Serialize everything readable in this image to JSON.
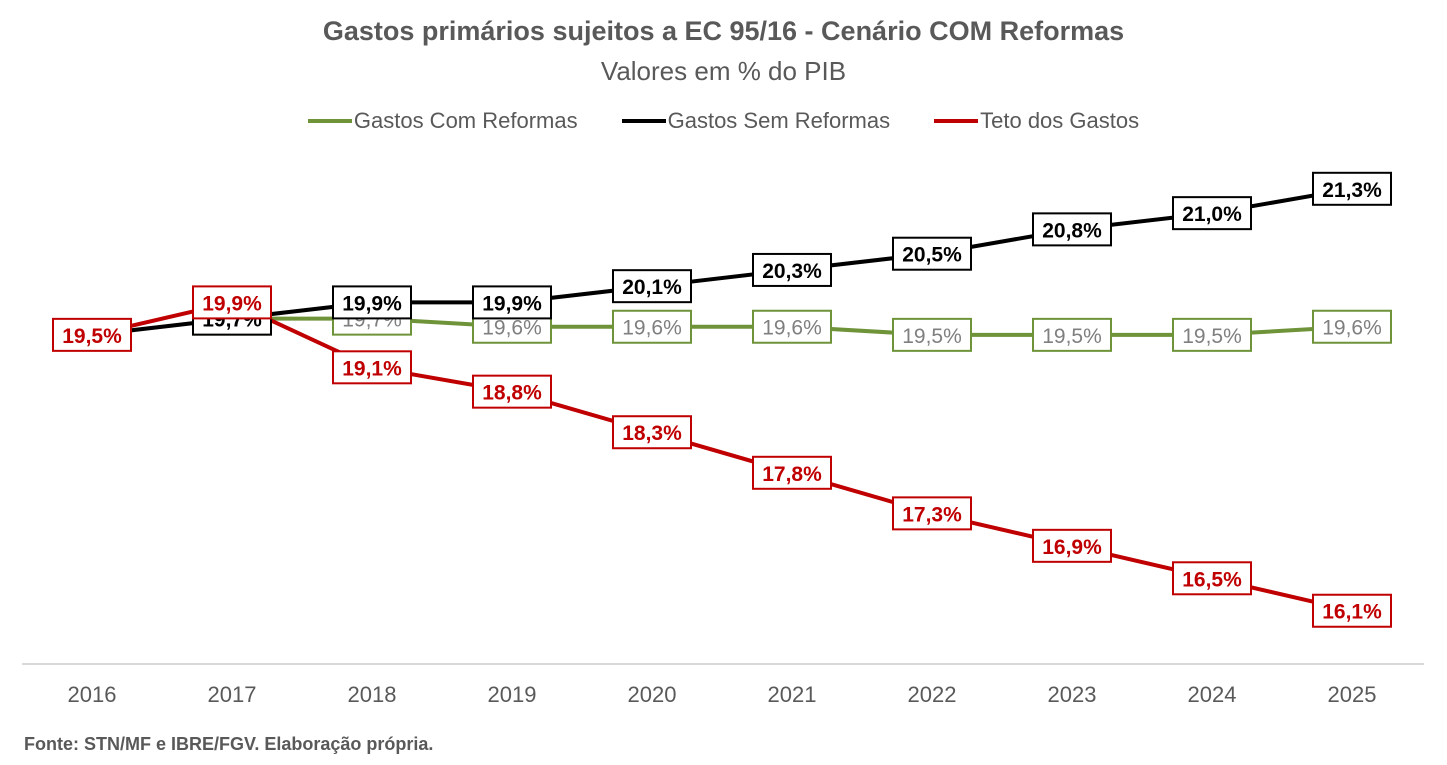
{
  "title": "Gastos primários sujeitos a EC 95/16 - Cenário COM Reformas",
  "subtitle": "Valores em % do PIB",
  "source": "Fonte: STN/MF e IBRE/FGV. Elaboração própria.",
  "chart_data": {
    "type": "line",
    "categories": [
      "2016",
      "2017",
      "2018",
      "2019",
      "2020",
      "2021",
      "2022",
      "2023",
      "2024",
      "2025"
    ],
    "ylim": [
      15,
      22
    ],
    "grid": false,
    "legend_position": "top",
    "series": [
      {
        "name": "Gastos Com Reformas",
        "color": "#6E9339",
        "label_color": "#7F7F7F",
        "values": [
          null,
          19.7,
          19.7,
          19.6,
          19.6,
          19.6,
          19.5,
          19.5,
          19.5,
          19.6
        ],
        "labels": [
          "",
          "19,7%",
          "19,7%",
          "19,6%",
          "19,6%",
          "19,6%",
          "19,5%",
          "19,5%",
          "19,5%",
          "19,6%"
        ]
      },
      {
        "name": "Gastos Sem Reformas",
        "color": "#000000",
        "label_color": "#000000",
        "values": [
          19.5,
          19.7,
          19.9,
          19.9,
          20.1,
          20.3,
          20.5,
          20.8,
          21.0,
          21.3
        ],
        "labels": [
          "",
          "19,7%",
          "19,9%",
          "19,9%",
          "20,1%",
          "20,3%",
          "20,5%",
          "20,8%",
          "21,0%",
          "21,3%"
        ]
      },
      {
        "name": "Teto dos Gastos",
        "color": "#C00000",
        "label_color": "#C00000",
        "values": [
          19.5,
          19.9,
          19.1,
          18.8,
          18.3,
          17.8,
          17.3,
          16.9,
          16.5,
          16.1
        ],
        "labels": [
          "19,5%",
          "19,9%",
          "19,1%",
          "18,8%",
          "18,3%",
          "17,8%",
          "17,3%",
          "16,9%",
          "16,5%",
          "16,1%"
        ]
      }
    ]
  }
}
